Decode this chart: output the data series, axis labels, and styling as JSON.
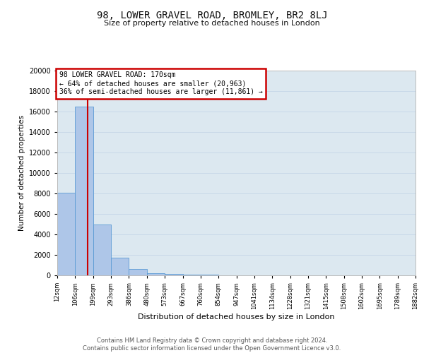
{
  "title": "98, LOWER GRAVEL ROAD, BROMLEY, BR2 8LJ",
  "subtitle": "Size of property relative to detached houses in London",
  "xlabel": "Distribution of detached houses by size in London",
  "ylabel": "Number of detached properties",
  "property_size": 170,
  "property_label": "98 LOWER GRAVEL ROAD: 170sqm",
  "pct_smaller": 64,
  "n_smaller": "20,963",
  "pct_larger": 36,
  "n_larger": "11,861",
  "bar_color": "#aec6e8",
  "bar_edge_color": "#5b9bd5",
  "redline_color": "#cc0000",
  "annotation_box_color": "#cc0000",
  "grid_color": "#c8d8e8",
  "background_color": "#dce8f0",
  "footer_text": "Contains HM Land Registry data © Crown copyright and database right 2024.\nContains public sector information licensed under the Open Government Licence v3.0.",
  "bins": [
    12,
    106,
    199,
    293,
    386,
    480,
    573,
    667,
    760,
    854,
    947,
    1041,
    1134,
    1228,
    1321,
    1415,
    1508,
    1602,
    1695,
    1789,
    1882
  ],
  "counts": [
    8050,
    16500,
    4950,
    1700,
    600,
    200,
    120,
    90,
    80,
    0,
    0,
    0,
    0,
    0,
    0,
    0,
    0,
    0,
    0,
    0
  ],
  "ylim": [
    0,
    20000
  ],
  "yticks": [
    0,
    2000,
    4000,
    6000,
    8000,
    10000,
    12000,
    14000,
    16000,
    18000,
    20000
  ],
  "xtick_labels": [
    "12sqm",
    "106sqm",
    "199sqm",
    "293sqm",
    "386sqm",
    "480sqm",
    "573sqm",
    "667sqm",
    "760sqm",
    "854sqm",
    "947sqm",
    "1041sqm",
    "1134sqm",
    "1228sqm",
    "1321sqm",
    "1415sqm",
    "1508sqm",
    "1602sqm",
    "1695sqm",
    "1789sqm",
    "1882sqm"
  ]
}
